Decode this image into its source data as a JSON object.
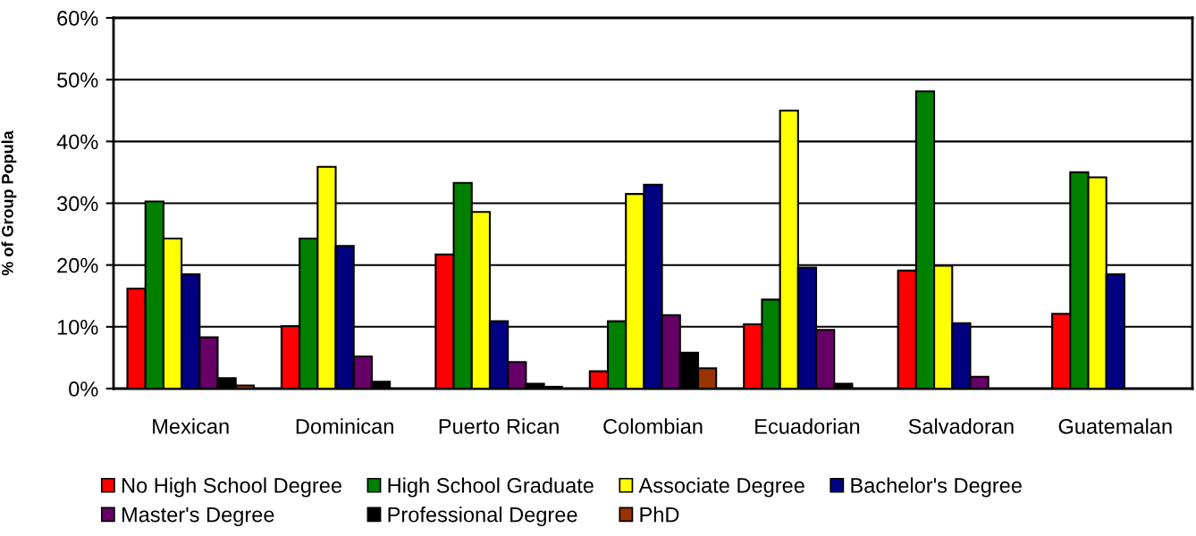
{
  "chart_data": {
    "type": "bar",
    "ylabel": "% of Group Popula",
    "categories": [
      "Mexican",
      "Dominican",
      "Puerto Rican",
      "Colombian",
      "Ecuadorian",
      "Salvadoran",
      "Guatemalan"
    ],
    "series": [
      {
        "name": "No High School Degree",
        "color": "#ff0000",
        "values": [
          16.2,
          10.1,
          21.7,
          2.8,
          10.4,
          19.1,
          12.1
        ]
      },
      {
        "name": "High School Graduate",
        "color": "#008000",
        "values": [
          30.3,
          24.3,
          33.3,
          10.9,
          14.4,
          48.1,
          35.0
        ]
      },
      {
        "name": "Associate Degree",
        "color": "#ffff00",
        "values": [
          24.3,
          35.9,
          28.6,
          31.5,
          45.0,
          19.9,
          34.2
        ]
      },
      {
        "name": "Bachelor's Degree",
        "color": "#000080",
        "values": [
          18.5,
          23.1,
          10.9,
          33.0,
          19.6,
          10.6,
          18.5
        ]
      },
      {
        "name": "Master's Degree",
        "color": "#660066",
        "values": [
          8.3,
          5.2,
          4.3,
          11.9,
          9.5,
          1.9,
          null
        ]
      },
      {
        "name": "Professional Degree",
        "color": "#000000",
        "values": [
          1.7,
          1.1,
          0.8,
          5.8,
          0.8,
          null,
          null
        ]
      },
      {
        "name": "PhD",
        "color": "#993300",
        "values": [
          0.5,
          null,
          0.3,
          3.3,
          null,
          null,
          null
        ]
      }
    ],
    "ylim": [
      0,
      60
    ],
    "yticks": [
      {
        "value": 0,
        "label": "0%"
      },
      {
        "value": 10,
        "label": "10%"
      },
      {
        "value": 20,
        "label": "20%"
      },
      {
        "value": 30,
        "label": "30%"
      },
      {
        "value": 40,
        "label": "40%"
      },
      {
        "value": 50,
        "label": "50%"
      },
      {
        "value": 60,
        "label": "60%"
      }
    ],
    "grid": "y",
    "legend": "bottom"
  }
}
